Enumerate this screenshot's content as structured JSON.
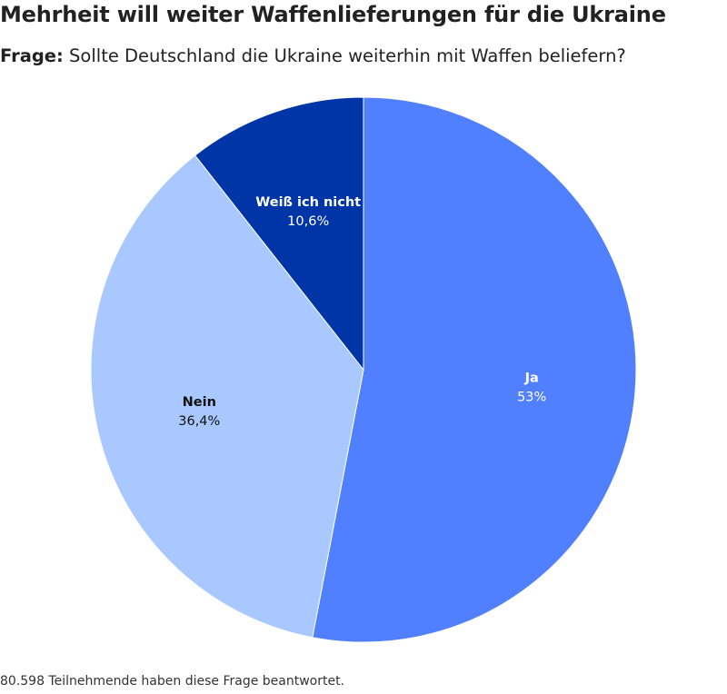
{
  "header": {
    "title": "Mehrheit will weiter Waffenlieferungen für die Ukraine",
    "question_label": "Frage:",
    "question_text": "Sollte Deutschland die Ukraine weiterhin mit Waffen beliefern?"
  },
  "footer": {
    "note": "80.598 Teilnehmende haben diese Frage beantwortet."
  },
  "chart_data": {
    "type": "pie",
    "title": "Mehrheit will weiter Waffenlieferungen für die Ukraine",
    "start": "top",
    "direction": "clockwise",
    "slices": [
      {
        "label": "Ja",
        "value": 53,
        "value_label": "53%",
        "color": "#5080ff",
        "text_color": "#ffffff"
      },
      {
        "label": "Nein",
        "value": 36.4,
        "value_label": "36,4%",
        "color": "#a8c8ff",
        "text_color": "#111111"
      },
      {
        "label": "Weiß ich nicht",
        "value": 10.6,
        "value_label": "10,6%",
        "color": "#0035a8",
        "text_color": "#ffffff"
      }
    ]
  }
}
